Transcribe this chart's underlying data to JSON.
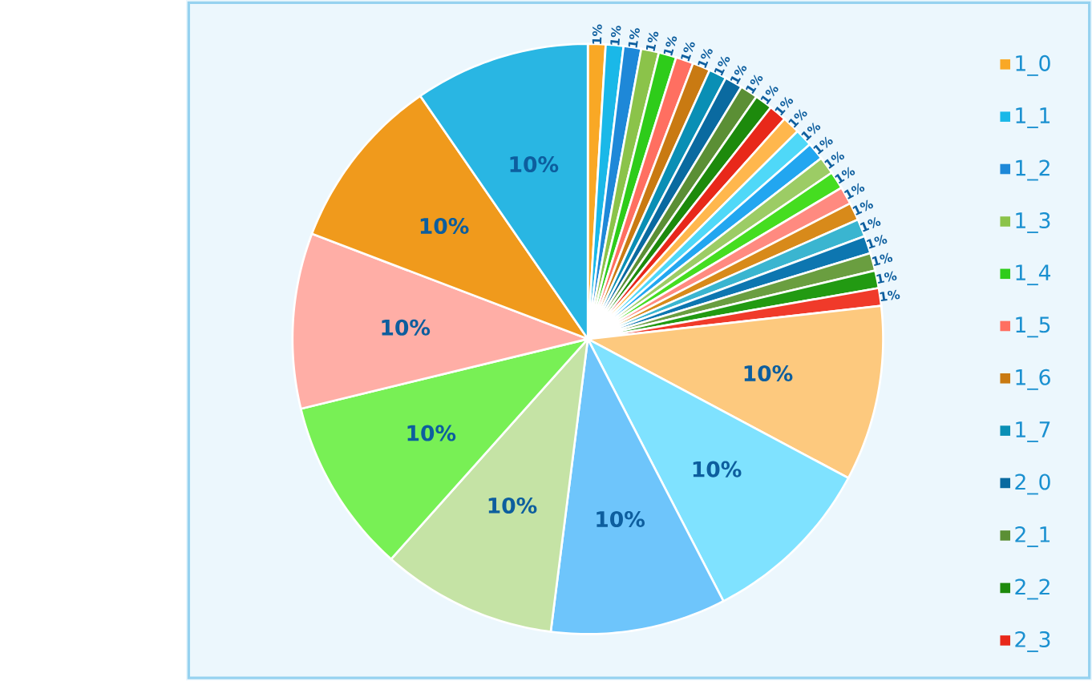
{
  "chart_data": {
    "type": "pie",
    "categories": [
      "1_0",
      "1_1",
      "1_2",
      "1_3",
      "1_4",
      "1_5",
      "1_6",
      "1_7",
      "2_0",
      "2_1",
      "2_2",
      "2_3",
      null,
      null,
      null,
      null,
      null,
      null,
      null,
      null,
      null,
      null,
      null,
      null,
      null,
      null,
      null,
      null,
      null,
      null,
      null,
      null
    ],
    "values": [
      0.967,
      0.967,
      0.967,
      0.967,
      0.967,
      0.967,
      0.967,
      0.967,
      0.967,
      0.967,
      0.967,
      0.967,
      0.967,
      0.967,
      0.967,
      0.967,
      0.967,
      0.967,
      0.967,
      0.967,
      0.967,
      0.967,
      0.967,
      0.967,
      9.6,
      9.6,
      9.6,
      9.6,
      9.6,
      9.6,
      9.6,
      9.6
    ],
    "value_labels": [
      "1%",
      "1%",
      "1%",
      "1%",
      "1%",
      "1%",
      "1%",
      "1%",
      "1%",
      "1%",
      "1%",
      "1%",
      "1%",
      "1%",
      "1%",
      "1%",
      "1%",
      "1%",
      "1%",
      "1%",
      "1%",
      "1%",
      "1%",
      "1%",
      "10%",
      "10%",
      "10%",
      "10%",
      "10%",
      "10%",
      "10%",
      "10%"
    ],
    "colors": [
      "#f9a825",
      "#1ab8e8",
      "#1e88d8",
      "#8bc34a",
      "#2ecc1a",
      "#ff6f61",
      "#c97a12",
      "#0a8fb5",
      "#0a6aa0",
      "#5b8f35",
      "#1d8a0c",
      "#e8281a",
      "#ffb74d",
      "#4fd8f8",
      "#22a6f0",
      "#9ccc65",
      "#45dd20",
      "#ff8a80",
      "#d88a1a",
      "#3ab5d0",
      "#0d76b0",
      "#6a9e40",
      "#229a12",
      "#f03a2a",
      "#fdc97e",
      "#7fe2ff",
      "#6ec5fb",
      "#c5e3a5",
      "#78f055",
      "#ffaea6",
      "#f09a1c",
      "#29b6e3"
    ],
    "legend": "right"
  }
}
